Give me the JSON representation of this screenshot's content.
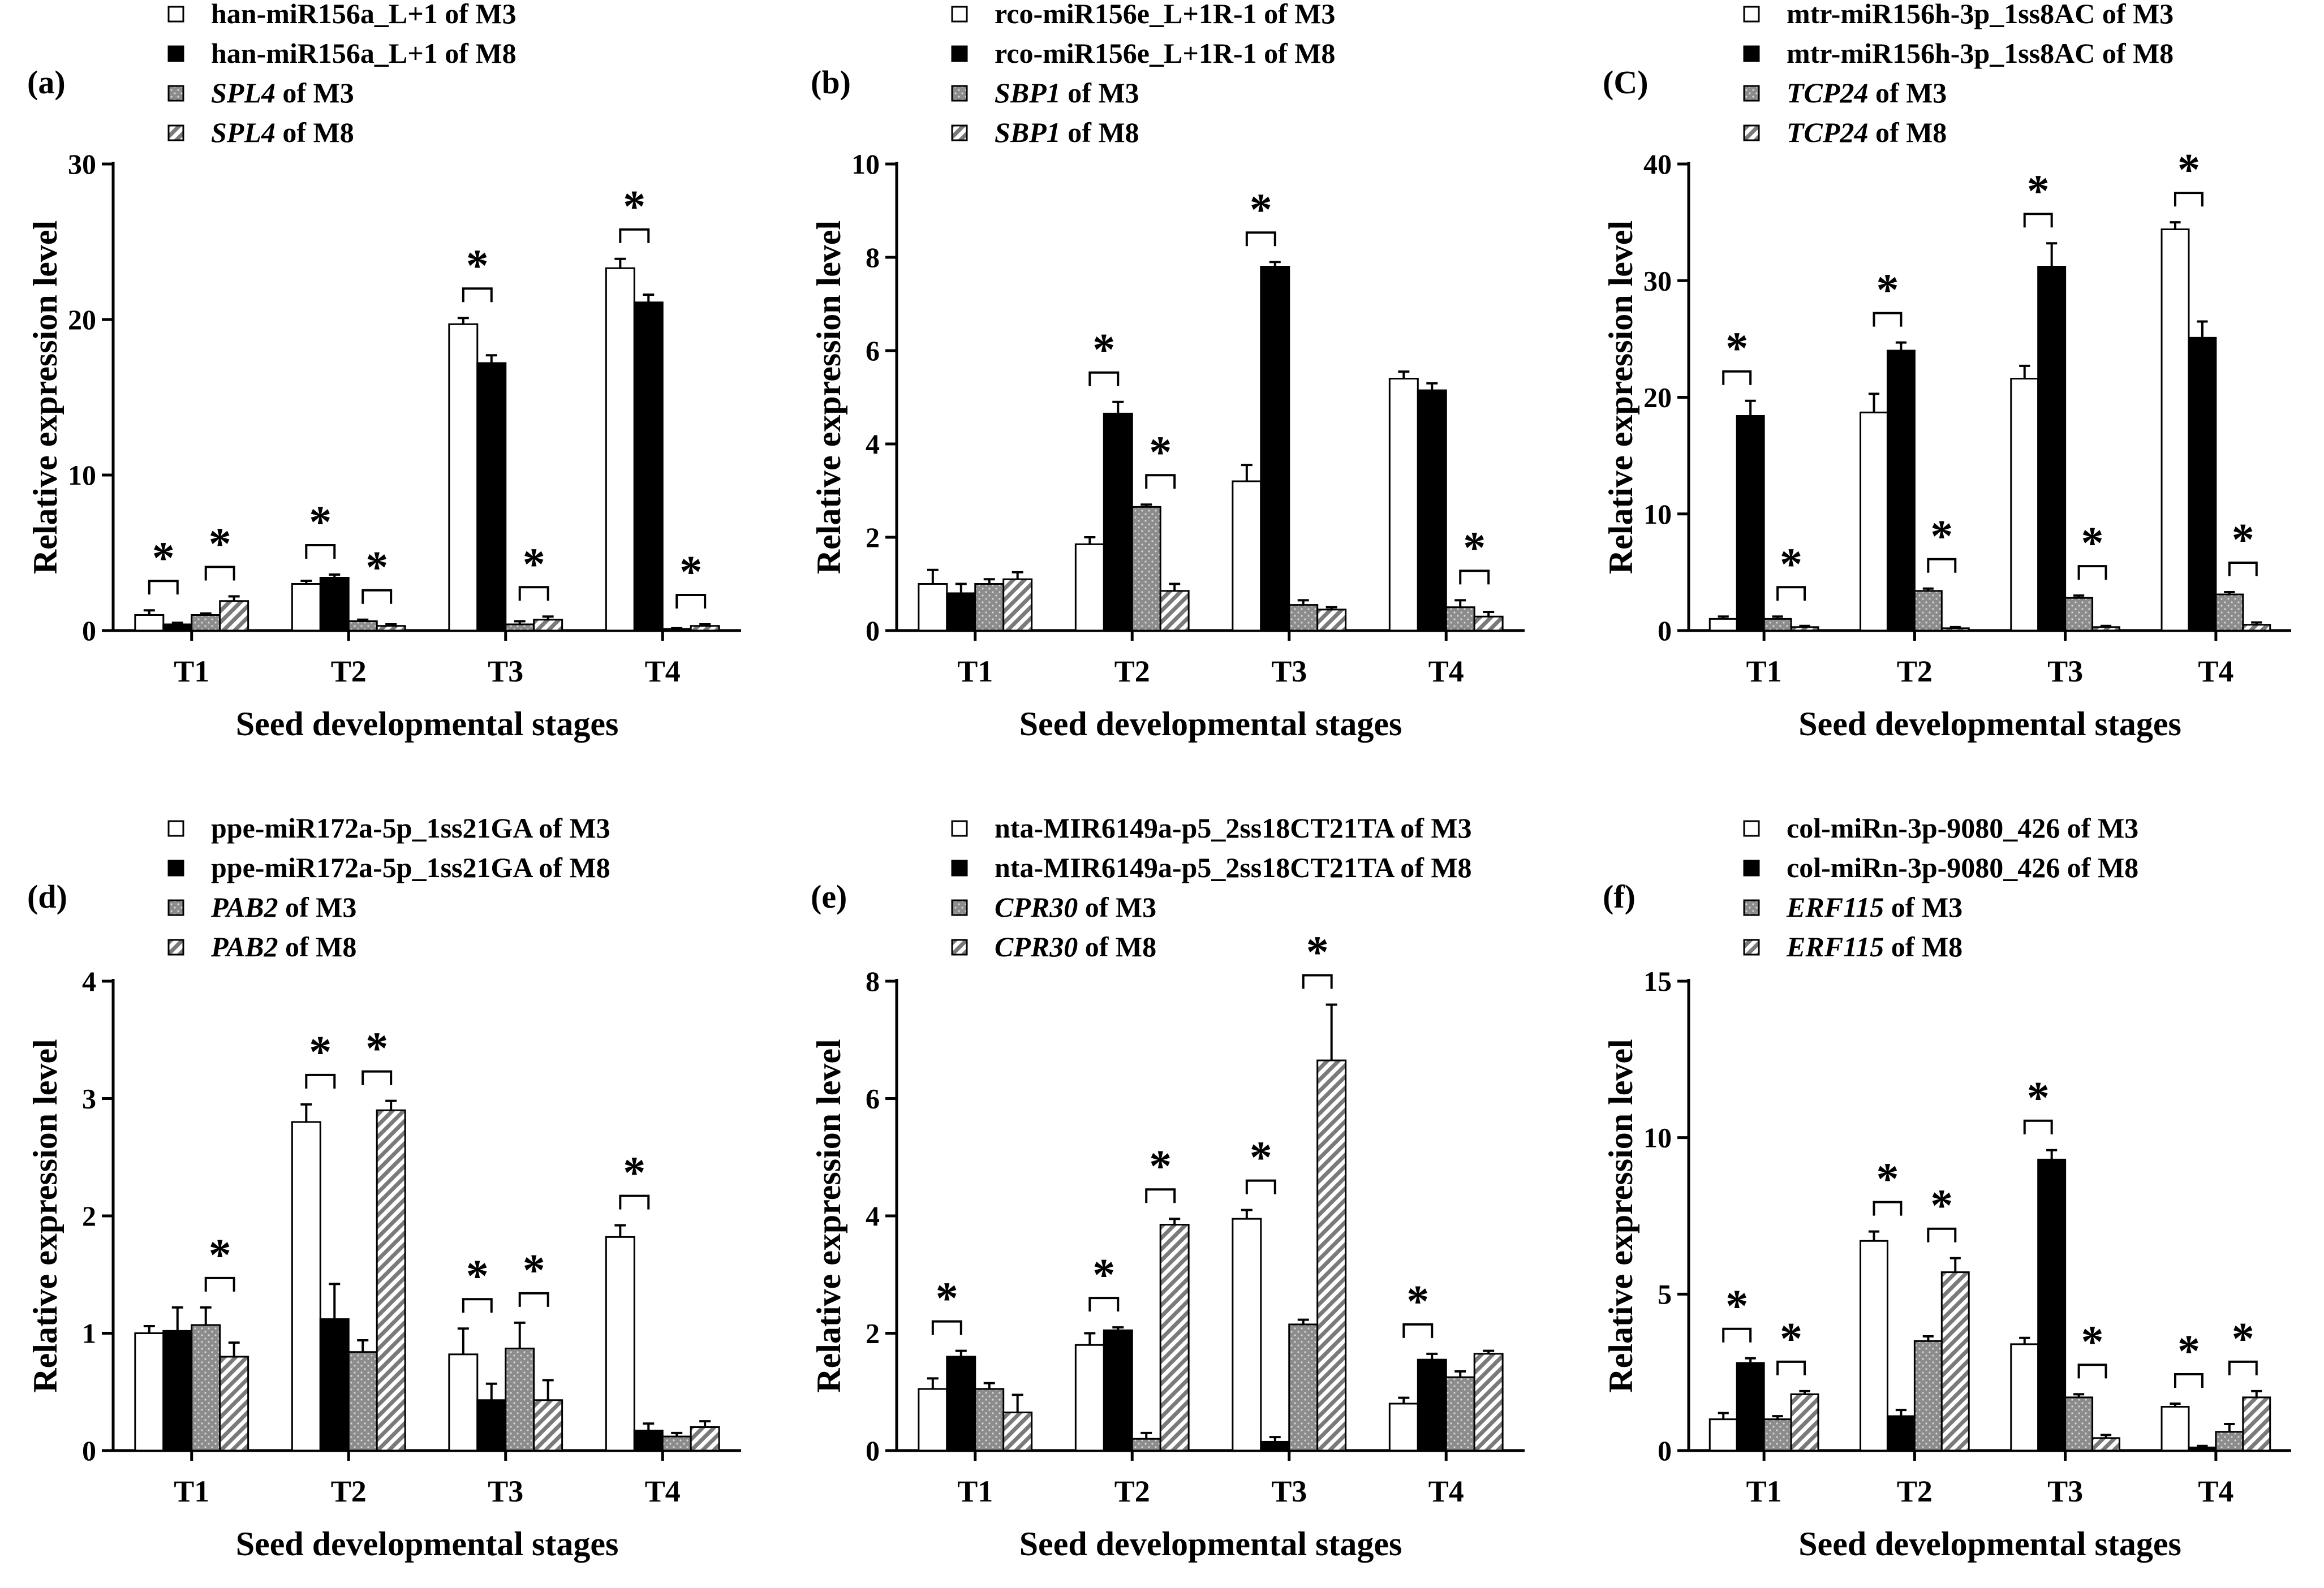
{
  "chart_data": [
    {
      "type": "bar",
      "panel": "(a)",
      "categories": [
        "T1",
        "T2",
        "T3",
        "T4"
      ],
      "ylim": [
        0,
        30
      ],
      "yticks": [
        0,
        10,
        20,
        30
      ],
      "ylabel": "Relative expression level",
      "xlabel": "Seed developmental stages",
      "legend": [
        {
          "prefix": "",
          "text": "han-miR156a_L+1 of M3"
        },
        {
          "prefix": "",
          "text": "han-miR156a_L+1 of M8"
        },
        {
          "prefix": "SPL4",
          "text": " of M3"
        },
        {
          "prefix": "SPL4",
          "text": " of M8"
        }
      ],
      "series": [
        {
          "name": "han-miR156a_L+1 of M3",
          "values": [
            1.0,
            3.0,
            19.7,
            23.3
          ],
          "errors": [
            0.3,
            0.2,
            0.4,
            0.6
          ]
        },
        {
          "name": "han-miR156a_L+1 of M8",
          "values": [
            0.4,
            3.4,
            17.2,
            21.1
          ],
          "errors": [
            0.1,
            0.2,
            0.5,
            0.5
          ]
        },
        {
          "name": "SPL4 of M3",
          "values": [
            1.0,
            0.6,
            0.4,
            0.1
          ],
          "errors": [
            0.1,
            0.1,
            0.2,
            0.05
          ]
        },
        {
          "name": "SPL4 of M8",
          "values": [
            1.9,
            0.3,
            0.7,
            0.3
          ],
          "errors": [
            0.3,
            0.1,
            0.2,
            0.1
          ]
        }
      ],
      "significance": [
        {
          "category": "T1",
          "pair": [
            0,
            1
          ]
        },
        {
          "category": "T1",
          "pair": [
            2,
            3
          ]
        },
        {
          "category": "T2",
          "pair": [
            0,
            1
          ]
        },
        {
          "category": "T2",
          "pair": [
            2,
            3
          ]
        },
        {
          "category": "T3",
          "pair": [
            0,
            1
          ]
        },
        {
          "category": "T3",
          "pair": [
            2,
            3
          ]
        },
        {
          "category": "T4",
          "pair": [
            0,
            1
          ]
        },
        {
          "category": "T4",
          "pair": [
            2,
            3
          ]
        }
      ],
      "sig_symbol": "*"
    },
    {
      "type": "bar",
      "panel": "(b)",
      "categories": [
        "T1",
        "T2",
        "T3",
        "T4"
      ],
      "ylim": [
        0,
        10
      ],
      "yticks": [
        0,
        2,
        4,
        6,
        8,
        10
      ],
      "ylabel": "Relative expression level",
      "xlabel": "Seed developmental stages",
      "legend": [
        {
          "prefix": "",
          "text": "rco-miR156e_L+1R-1 of M3"
        },
        {
          "prefix": "",
          "text": "rco-miR156e_L+1R-1 of M8"
        },
        {
          "prefix": "SBP1",
          "text": " of M3"
        },
        {
          "prefix": "SBP1",
          "text": " of M8"
        }
      ],
      "series": [
        {
          "name": "rco-miR156e_L+1R-1 of M3",
          "values": [
            1.0,
            1.85,
            3.2,
            5.4
          ],
          "errors": [
            0.3,
            0.15,
            0.35,
            0.15
          ]
        },
        {
          "name": "rco-miR156e_L+1R-1 of M8",
          "values": [
            0.8,
            4.65,
            7.8,
            5.15
          ],
          "errors": [
            0.2,
            0.25,
            0.1,
            0.15
          ]
        },
        {
          "name": "SBP1 of M3",
          "values": [
            1.0,
            2.65,
            0.55,
            0.5
          ],
          "errors": [
            0.1,
            0.05,
            0.1,
            0.15
          ]
        },
        {
          "name": "SBP1 of M8",
          "values": [
            1.1,
            0.85,
            0.45,
            0.3
          ],
          "errors": [
            0.15,
            0.15,
            0.05,
            0.1
          ]
        }
      ],
      "significance": [
        {
          "category": "T2",
          "pair": [
            0,
            1
          ]
        },
        {
          "category": "T2",
          "pair": [
            2,
            3
          ]
        },
        {
          "category": "T3",
          "pair": [
            0,
            1
          ]
        },
        {
          "category": "T4",
          "pair": [
            2,
            3
          ]
        }
      ],
      "sig_symbol": "*"
    },
    {
      "type": "bar",
      "panel": "(C)",
      "categories": [
        "T1",
        "T2",
        "T3",
        "T4"
      ],
      "ylim": [
        0,
        40
      ],
      "yticks": [
        0,
        10,
        20,
        30,
        40
      ],
      "ylabel": "Relative expression level",
      "xlabel": "Seed developmental stages",
      "legend": [
        {
          "prefix": "",
          "text": "mtr-miR156h-3p_1ss8AC of M3"
        },
        {
          "prefix": "",
          "text": "mtr-miR156h-3p_1ss8AC of M8"
        },
        {
          "prefix": "TCP24",
          "text": " of M3"
        },
        {
          "prefix": "TCP24",
          "text": " of M8"
        }
      ],
      "series": [
        {
          "name": "mtr-miR156h-3p_1ss8AC of M3",
          "values": [
            1.0,
            18.7,
            21.6,
            34.4
          ],
          "errors": [
            0.2,
            1.6,
            1.1,
            0.6
          ]
        },
        {
          "name": "mtr-miR156h-3p_1ss8AC of M8",
          "values": [
            18.4,
            24.0,
            31.2,
            25.1
          ],
          "errors": [
            1.3,
            0.7,
            2.0,
            1.4
          ]
        },
        {
          "name": "TCP24 of M3",
          "values": [
            1.0,
            3.4,
            2.8,
            3.1
          ],
          "errors": [
            0.2,
            0.2,
            0.2,
            0.2
          ]
        },
        {
          "name": "TCP24 of M8",
          "values": [
            0.3,
            0.2,
            0.3,
            0.5
          ],
          "errors": [
            0.1,
            0.1,
            0.1,
            0.2
          ]
        }
      ],
      "significance": [
        {
          "category": "T1",
          "pair": [
            0,
            1
          ]
        },
        {
          "category": "T1",
          "pair": [
            2,
            3
          ]
        },
        {
          "category": "T2",
          "pair": [
            0,
            1
          ]
        },
        {
          "category": "T2",
          "pair": [
            2,
            3
          ]
        },
        {
          "category": "T3",
          "pair": [
            0,
            1
          ]
        },
        {
          "category": "T3",
          "pair": [
            2,
            3
          ]
        },
        {
          "category": "T4",
          "pair": [
            0,
            1
          ]
        },
        {
          "category": "T4",
          "pair": [
            2,
            3
          ]
        }
      ],
      "sig_symbol": "*"
    },
    {
      "type": "bar",
      "panel": "(d)",
      "categories": [
        "T1",
        "T2",
        "T3",
        "T4"
      ],
      "ylim": [
        0,
        4
      ],
      "yticks": [
        0,
        1,
        2,
        3,
        4
      ],
      "ylabel": "Relative expression level",
      "xlabel": "Seed developmental stages",
      "legend": [
        {
          "prefix": "",
          "text": "ppe-miR172a-5p_1ss21GA of M3"
        },
        {
          "prefix": "",
          "text": "ppe-miR172a-5p_1ss21GA of M8"
        },
        {
          "prefix": "PAB2",
          "text": " of M3"
        },
        {
          "prefix": "PAB2",
          "text": " of M8"
        }
      ],
      "series": [
        {
          "name": "ppe-miR172a-5p_1ss21GA of M3",
          "values": [
            1.0,
            2.8,
            0.82,
            1.82
          ],
          "errors": [
            0.06,
            0.15,
            0.22,
            0.1
          ]
        },
        {
          "name": "ppe-miR172a-5p_1ss21GA of M8",
          "values": [
            1.02,
            1.12,
            0.43,
            0.17
          ],
          "errors": [
            0.2,
            0.3,
            0.14,
            0.06
          ]
        },
        {
          "name": "PAB2 of M3",
          "values": [
            1.07,
            0.84,
            0.87,
            0.12
          ],
          "errors": [
            0.15,
            0.1,
            0.22,
            0.03
          ]
        },
        {
          "name": "PAB2 of M8",
          "values": [
            0.8,
            2.9,
            0.43,
            0.2
          ],
          "errors": [
            0.12,
            0.08,
            0.17,
            0.05
          ]
        }
      ],
      "significance": [
        {
          "category": "T1",
          "pair": [
            2,
            3
          ]
        },
        {
          "category": "T2",
          "pair": [
            0,
            1
          ]
        },
        {
          "category": "T2",
          "pair": [
            2,
            3
          ]
        },
        {
          "category": "T3",
          "pair": [
            0,
            1
          ]
        },
        {
          "category": "T3",
          "pair": [
            2,
            3
          ]
        },
        {
          "category": "T4",
          "pair": [
            0,
            1
          ]
        }
      ],
      "sig_symbol": "*"
    },
    {
      "type": "bar",
      "panel": "(e)",
      "categories": [
        "T1",
        "T2",
        "T3",
        "T4"
      ],
      "ylim": [
        0,
        8
      ],
      "yticks": [
        0,
        2,
        4,
        6,
        8
      ],
      "ylabel": "Relative expression level",
      "xlabel": "Seed developmental stages",
      "legend": [
        {
          "prefix": "",
          "text": "nta-MIR6149a-p5_2ss18CT21TA of M3"
        },
        {
          "prefix": "",
          "text": "nta-MIR6149a-p5_2ss18CT21TA of M8"
        },
        {
          "prefix": "CPR30",
          "text": " of M3"
        },
        {
          "prefix": "CPR30",
          "text": " of M8"
        }
      ],
      "series": [
        {
          "name": "nta-MIR6149a-p5_2ss18CT21TA of M3",
          "values": [
            1.05,
            1.8,
            3.95,
            0.8
          ],
          "errors": [
            0.18,
            0.2,
            0.15,
            0.1
          ]
        },
        {
          "name": "nta-MIR6149a-p5_2ss18CT21TA of M8",
          "values": [
            1.6,
            2.05,
            0.15,
            1.55
          ],
          "errors": [
            0.1,
            0.05,
            0.08,
            0.1
          ]
        },
        {
          "name": "CPR30 of M3",
          "values": [
            1.05,
            0.2,
            2.15,
            1.25
          ],
          "errors": [
            0.1,
            0.1,
            0.08,
            0.1
          ]
        },
        {
          "name": "CPR30 of M8",
          "values": [
            0.65,
            3.85,
            6.65,
            1.65
          ],
          "errors": [
            0.3,
            0.1,
            0.95,
            0.05
          ]
        }
      ],
      "significance": [
        {
          "category": "T1",
          "pair": [
            0,
            1
          ]
        },
        {
          "category": "T2",
          "pair": [
            0,
            1
          ]
        },
        {
          "category": "T2",
          "pair": [
            2,
            3
          ]
        },
        {
          "category": "T3",
          "pair": [
            0,
            1
          ]
        },
        {
          "category": "T3",
          "pair": [
            2,
            3
          ]
        },
        {
          "category": "T4",
          "pair": [
            0,
            1
          ]
        }
      ],
      "sig_symbol": "*"
    },
    {
      "type": "bar",
      "panel": "(f)",
      "categories": [
        "T1",
        "T2",
        "T3",
        "T4"
      ],
      "ylim": [
        0,
        15
      ],
      "yticks": [
        0,
        5,
        10,
        15
      ],
      "ylabel": "Relative expression level",
      "xlabel": "Seed developmental stages",
      "legend": [
        {
          "prefix": "",
          "text": "col-miRn-3p-9080_426 of M3"
        },
        {
          "prefix": "",
          "text": "col-miRn-3p-9080_426 of M8"
        },
        {
          "prefix": "ERF115",
          "text": " of M3"
        },
        {
          "prefix": "ERF115",
          "text": " of M8"
        }
      ],
      "series": [
        {
          "name": "col-miRn-3p-9080_426 of M3",
          "values": [
            1.0,
            6.7,
            3.4,
            1.4
          ],
          "errors": [
            0.2,
            0.3,
            0.2,
            0.1
          ]
        },
        {
          "name": "col-miRn-3p-9080_426 of M8",
          "values": [
            2.8,
            1.1,
            9.3,
            0.1
          ],
          "errors": [
            0.15,
            0.2,
            0.3,
            0.05
          ]
        },
        {
          "name": "ERF115 of M3",
          "values": [
            1.0,
            3.5,
            1.7,
            0.6
          ],
          "errors": [
            0.1,
            0.15,
            0.1,
            0.25
          ]
        },
        {
          "name": "ERF115 of M8",
          "values": [
            1.8,
            5.7,
            0.4,
            1.7
          ],
          "errors": [
            0.1,
            0.45,
            0.1,
            0.2
          ]
        }
      ],
      "significance": [
        {
          "category": "T1",
          "pair": [
            0,
            1
          ]
        },
        {
          "category": "T1",
          "pair": [
            2,
            3
          ]
        },
        {
          "category": "T2",
          "pair": [
            0,
            1
          ]
        },
        {
          "category": "T2",
          "pair": [
            2,
            3
          ]
        },
        {
          "category": "T3",
          "pair": [
            0,
            1
          ]
        },
        {
          "category": "T3",
          "pair": [
            2,
            3
          ]
        },
        {
          "category": "T4",
          "pair": [
            0,
            1
          ]
        },
        {
          "category": "T4",
          "pair": [
            2,
            3
          ]
        }
      ],
      "sig_symbol": "*"
    }
  ]
}
